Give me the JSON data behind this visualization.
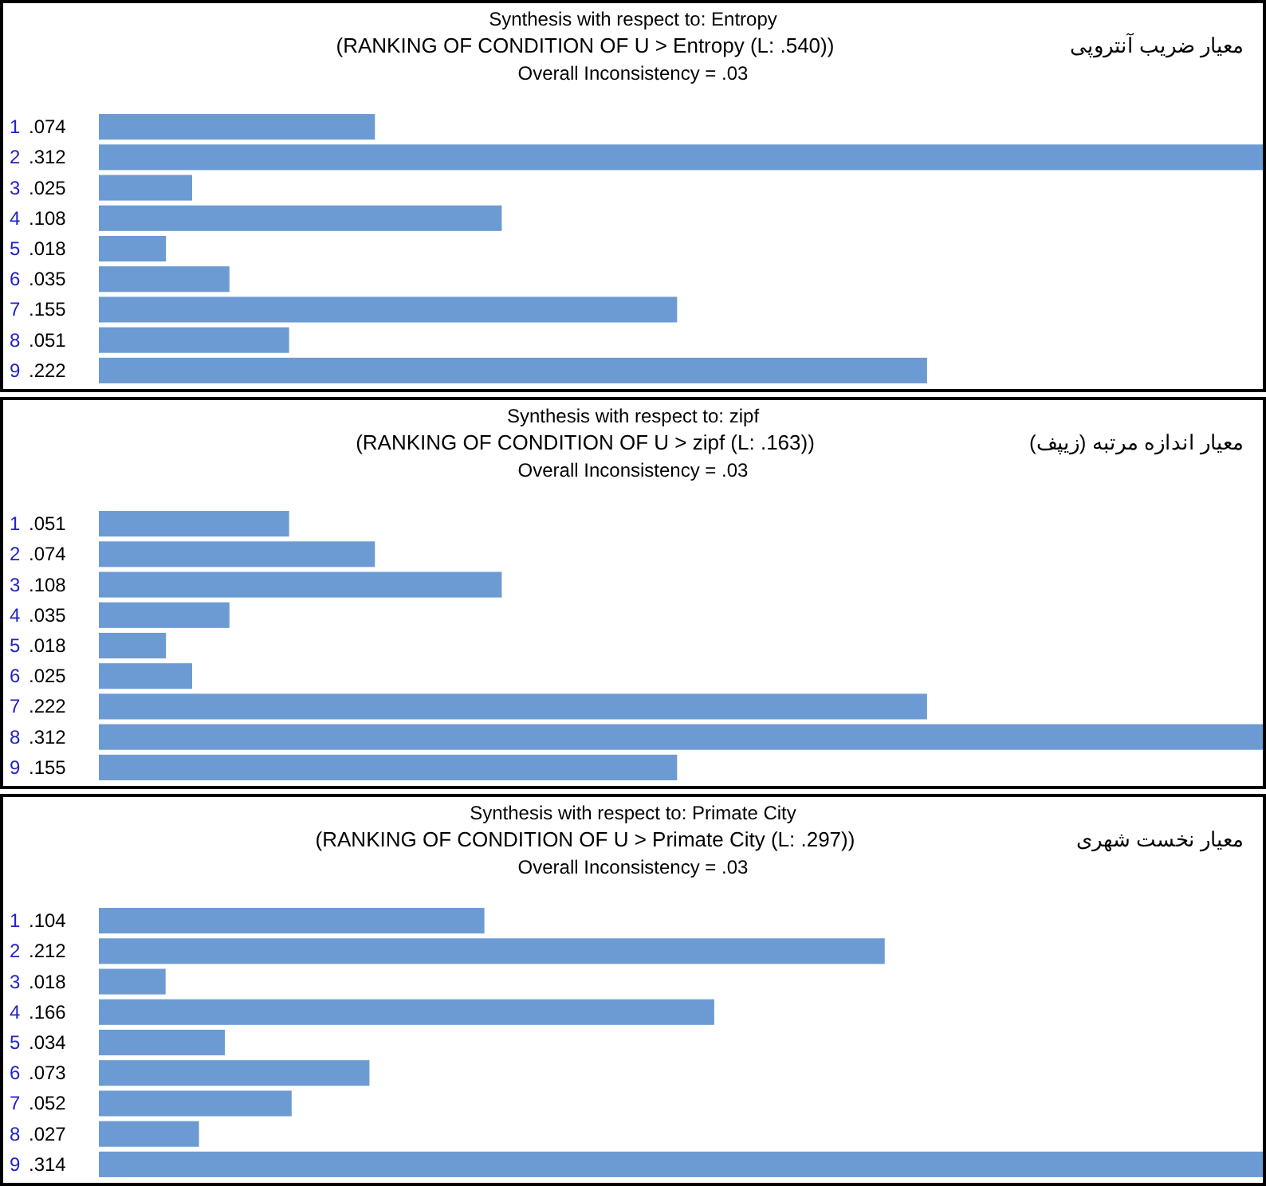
{
  "chart_data": [
    {
      "type": "bar",
      "orientation": "horizontal",
      "title": "Synthesis with respect to: Entropy",
      "subtitle": "(RANKING OF CONDITION OF U > Entropy (L: .540))",
      "annotations": [
        "Overall Inconsistency = .03",
        "معیار ضریب آنتروپی"
      ],
      "color": "#6b9bd2",
      "categories": [
        "1",
        "2",
        "3",
        "4",
        "5",
        "6",
        "7",
        "8",
        "9"
      ],
      "values": [
        0.074,
        0.312,
        0.025,
        0.108,
        0.018,
        0.035,
        0.155,
        0.051,
        0.222
      ],
      "value_labels": [
        ".074",
        ".312",
        ".025",
        ".108",
        ".018",
        ".035",
        ".155",
        ".051",
        ".222"
      ]
    },
    {
      "type": "bar",
      "orientation": "horizontal",
      "title": "Synthesis with respect to: zipf",
      "subtitle": "(RANKING OF CONDITION OF U > zipf (L: .163))",
      "annotations": [
        "Overall Inconsistency = .03",
        "معیار اندازه مرتبه (زیپف)"
      ],
      "color": "#6b9bd2",
      "categories": [
        "1",
        "2",
        "3",
        "4",
        "5",
        "6",
        "7",
        "8",
        "9"
      ],
      "values": [
        0.051,
        0.074,
        0.108,
        0.035,
        0.018,
        0.025,
        0.222,
        0.312,
        0.155
      ],
      "value_labels": [
        ".051",
        ".074",
        ".108",
        ".035",
        ".018",
        ".025",
        ".222",
        ".312",
        ".155"
      ]
    },
    {
      "type": "bar",
      "orientation": "horizontal",
      "title": "Synthesis with respect to: Primate City",
      "subtitle": "(RANKING OF CONDITION OF U > Primate City (L: .297))",
      "annotations": [
        "Overall Inconsistency = .03",
        "معیار نخست شهری"
      ],
      "color": "#6b9bd2",
      "categories": [
        "1",
        "2",
        "3",
        "4",
        "5",
        "6",
        "7",
        "8",
        "9"
      ],
      "values": [
        0.104,
        0.212,
        0.018,
        0.166,
        0.034,
        0.073,
        0.052,
        0.027,
        0.314
      ],
      "value_labels": [
        ".104",
        ".212",
        ".018",
        ".166",
        ".034",
        ".073",
        ".052",
        ".027",
        ".314"
      ]
    }
  ]
}
